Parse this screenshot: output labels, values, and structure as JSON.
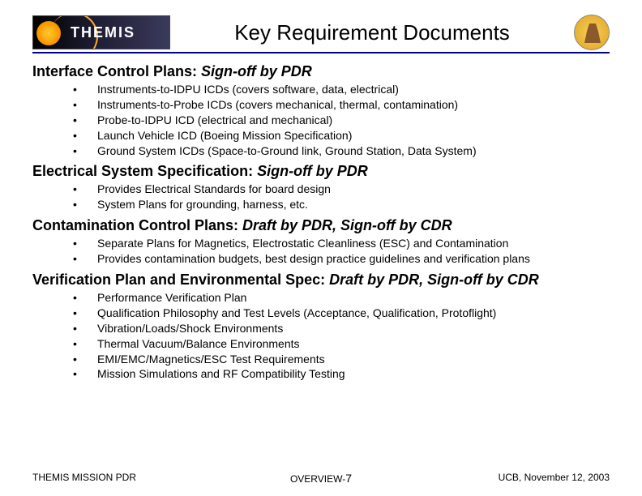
{
  "logo_text": "THEMIS",
  "title": "Key Requirement Documents",
  "sections": [
    {
      "heading_plain": "Interface Control Plans: ",
      "heading_italic": "Sign-off by PDR",
      "items": [
        "Instruments-to-IDPU ICDs (covers software, data, electrical)",
        "Instruments-to-Probe ICDs (covers mechanical, thermal, contamination)",
        "Probe-to-IDPU ICD (electrical and mechanical)",
        "Launch Vehicle ICD (Boeing Mission Specification)",
        "Ground System ICDs (Space-to-Ground link, Ground Station, Data System)"
      ]
    },
    {
      "heading_plain": "Electrical System Specification: ",
      "heading_italic": "Sign-off by PDR",
      "items": [
        "Provides Electrical Standards for board design",
        "System Plans for grounding, harness, etc."
      ]
    },
    {
      "heading_plain": "Contamination Control Plans: ",
      "heading_italic": "Draft by PDR, Sign-off by CDR",
      "items": [
        "Separate Plans for Magnetics, Electrostatic Cleanliness (ESC) and Contamination",
        "Provides contamination budgets, best design practice guidelines and verification plans"
      ]
    },
    {
      "heading_plain": "Verification Plan and Environmental Spec: ",
      "heading_italic": "Draft by PDR, Sign-off by CDR",
      "items": [
        "Performance Verification Plan",
        "Qualification Philosophy and Test Levels (Acceptance, Qualification, Protoflight)",
        "Vibration/Loads/Shock Environments",
        "Thermal Vacuum/Balance Environments",
        "EMI/EMC/Magnetics/ESC Test Requirements",
        "Mission Simulations and RF Compatibility Testing"
      ]
    }
  ],
  "footer": {
    "left": "THEMIS MISSION PDR",
    "center_prefix": "OVERVIEW-",
    "page": "7",
    "right": "UCB, November 12, 2003"
  },
  "colors": {
    "rule": "#00008b",
    "text": "#000000",
    "background": "#ffffff"
  }
}
